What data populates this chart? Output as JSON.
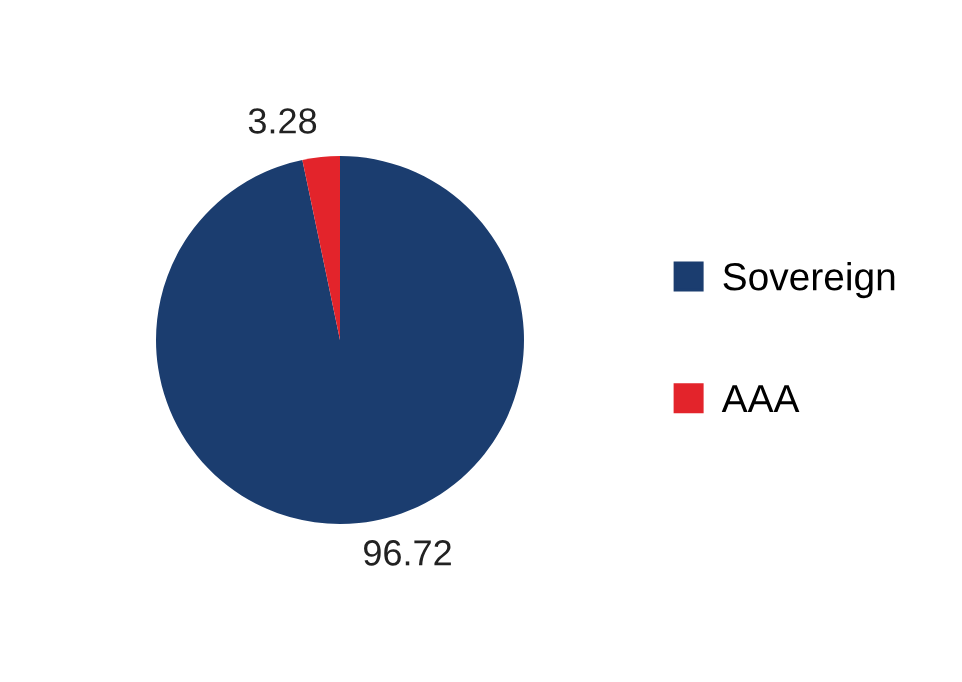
{
  "chart_data": {
    "type": "pie",
    "categories": [
      "Sovereign",
      "AAA"
    ],
    "values": [
      96.72,
      3.28
    ],
    "colors": [
      "#1b3d6f",
      "#e3242b"
    ],
    "data_labels": true,
    "legend": "right"
  }
}
